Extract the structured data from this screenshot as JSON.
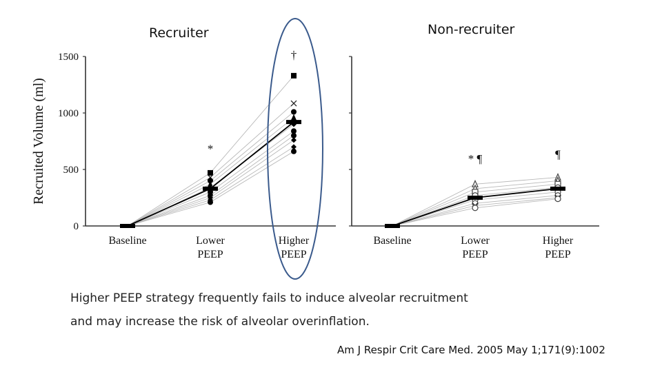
{
  "panels": {
    "left_title": "Recruiter",
    "right_title": "Non-recruiter"
  },
  "caption": {
    "line1": "Higher PEEP strategy frequently fails to induce alveolar recruitment",
    "line2": "and may increase the risk of alveolar overinflation."
  },
  "citation": "Am J Respir Crit Care Med. 2005 May 1;171(9):1002",
  "colors": {
    "highlight_ellipse": "#3a5a8c",
    "individual_lines": "#b8b8b8",
    "mean_line": "#000000"
  },
  "chart_data": [
    {
      "type": "line",
      "title": "Recruiter",
      "ylabel": "Recruited Volume (ml)",
      "categories": [
        "Baseline",
        "Lower\nPEEP",
        "Higher\nPEEP"
      ],
      "category_lines": [
        [
          "Baseline"
        ],
        [
          "Lower",
          "PEEP"
        ],
        [
          "Higher",
          "PEEP"
        ]
      ],
      "ylim": [
        0,
        1500
      ],
      "yticks": [
        "0",
        "500",
        "1000",
        "1500"
      ],
      "ytick_values": [
        0,
        500,
        1000,
        1500
      ],
      "mean": {
        "values": [
          0,
          330,
          920
        ]
      },
      "series": [
        {
          "values": [
            0,
            470,
            1330
          ],
          "marker": "square"
        },
        {
          "values": [
            0,
            430,
            1085
          ],
          "marker": "x"
        },
        {
          "values": [
            0,
            400,
            1010
          ],
          "marker": "circle"
        },
        {
          "values": [
            0,
            370,
            960
          ],
          "marker": "triangle"
        },
        {
          "values": [
            0,
            340,
            900
          ],
          "marker": "diamond"
        },
        {
          "values": [
            0,
            300,
            840
          ],
          "marker": "circle"
        },
        {
          "values": [
            0,
            270,
            800
          ],
          "marker": "circle"
        },
        {
          "values": [
            0,
            250,
            760
          ],
          "marker": "diamond"
        },
        {
          "values": [
            0,
            230,
            700
          ],
          "marker": "diamond"
        },
        {
          "values": [
            0,
            210,
            660
          ],
          "marker": "circle"
        }
      ],
      "annotations": [
        {
          "text": "*",
          "category": 1,
          "value": 650
        },
        {
          "text": "†",
          "category": 2,
          "value": 1480
        }
      ]
    },
    {
      "type": "line",
      "title": "Non-recruiter",
      "categories": [
        "Baseline",
        "Lower\nPEEP",
        "Higher\nPEEP"
      ],
      "category_lines": [
        [
          "Baseline"
        ],
        [
          "Lower",
          "PEEP"
        ],
        [
          "Higher",
          "PEEP"
        ]
      ],
      "ylim": [
        0,
        1500
      ],
      "mean": {
        "values": [
          0,
          250,
          330
        ]
      },
      "series": [
        {
          "values": [
            0,
            370,
            430
          ],
          "marker": "triangle-open"
        },
        {
          "values": [
            0,
            330,
            400
          ],
          "marker": "triangle-open"
        },
        {
          "values": [
            0,
            300,
            370
          ],
          "marker": "square-open"
        },
        {
          "values": [
            0,
            270,
            340
          ],
          "marker": "circle-open"
        },
        {
          "values": [
            0,
            230,
            300
          ],
          "marker": "circle-open"
        },
        {
          "values": [
            0,
            200,
            270
          ],
          "marker": "circle-open"
        },
        {
          "values": [
            0,
            180,
            250
          ],
          "marker": "x"
        },
        {
          "values": [
            0,
            160,
            240
          ],
          "marker": "circle-open"
        }
      ],
      "annotations": [
        {
          "text": "* ¶",
          "category": 1,
          "value": 560
        },
        {
          "text": "¶",
          "category": 2,
          "value": 600
        }
      ]
    }
  ]
}
